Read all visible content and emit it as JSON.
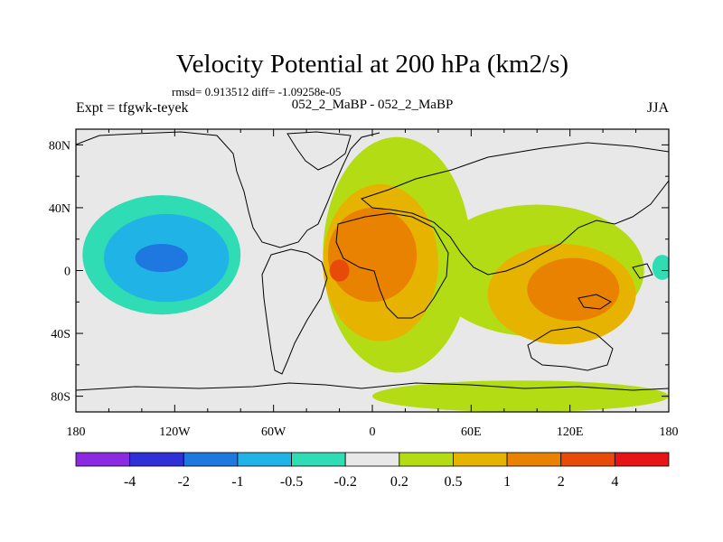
{
  "chart_data": {
    "type": "heatmap",
    "title": "Velocity Potential at 200 hPa (km2/s)",
    "stats_line": "rmsd= 0.913512 diff= -1.09258e-05",
    "left_label": "Expt = tfgwk-teyek",
    "center_label": "052_2_MaBP - 052_2_MaBP",
    "right_label": "JJA",
    "x_range": [
      -180,
      180
    ],
    "y_range": [
      -90,
      90
    ],
    "x_ticks": [
      {
        "value": -180,
        "label": "180"
      },
      {
        "value": -120,
        "label": "120W"
      },
      {
        "value": -60,
        "label": "60W"
      },
      {
        "value": 0,
        "label": "0"
      },
      {
        "value": 60,
        "label": "60E"
      },
      {
        "value": 120,
        "label": "120E"
      },
      {
        "value": 180,
        "label": "180"
      }
    ],
    "y_ticks": [
      {
        "value": 80,
        "label": "80N"
      },
      {
        "value": 40,
        "label": "40N"
      },
      {
        "value": 0,
        "label": "0"
      },
      {
        "value": -40,
        "label": "40S"
      },
      {
        "value": -80,
        "label": "80S"
      }
    ],
    "colorbar": {
      "colors": [
        "#8a2be2",
        "#3030d8",
        "#1e78e0",
        "#20b4e6",
        "#30dcb4",
        "#e8e8e8",
        "#b4dc14",
        "#e6b400",
        "#e88200",
        "#e84a0a",
        "#e61414"
      ],
      "labels": [
        "-4",
        "-2",
        "-1",
        "-0.5",
        "-0.2",
        "0.2",
        "0.5",
        "1",
        "2",
        "4"
      ]
    },
    "regions": [
      {
        "name": "pacific-negative",
        "level": -0.2,
        "center": [
          -130,
          25
        ],
        "radius": [
          58,
          60
        ]
      },
      {
        "name": "pacific-south-band",
        "level": -0.2,
        "center": [
          -150,
          -30
        ],
        "radius": [
          40,
          22
        ]
      },
      {
        "name": "pacific-negative-mid",
        "level": -0.5,
        "center": [
          -128,
          10
        ],
        "radius": [
          48,
          38
        ]
      },
      {
        "name": "pacific-negative-strong",
        "level": -1,
        "center": [
          -125,
          8
        ],
        "radius": [
          38,
          28
        ]
      },
      {
        "name": "pacific-negative-core",
        "level": -2,
        "center": [
          -128,
          8
        ],
        "radius": [
          16,
          9
        ]
      },
      {
        "name": "east-pacific-negative",
        "level": -0.2,
        "center": [
          172,
          2
        ],
        "radius": [
          12,
          18
        ]
      },
      {
        "name": "east-pacific-negative-core",
        "level": -0.5,
        "center": [
          176,
          2
        ],
        "radius": [
          6,
          8
        ]
      },
      {
        "name": "atlantic-africa-positive",
        "level": 0.2,
        "center": [
          15,
          10
        ],
        "radius": [
          45,
          75
        ]
      },
      {
        "name": "indian-ocean-positive",
        "level": 0.2,
        "center": [
          100,
          0
        ],
        "radius": [
          65,
          42
        ]
      },
      {
        "name": "southern-ocean-positive",
        "level": 0.2,
        "center": [
          90,
          -80
        ],
        "radius": [
          90,
          10
        ]
      },
      {
        "name": "atlantic-positive-mid",
        "level": 0.5,
        "center": [
          5,
          5
        ],
        "radius": [
          35,
          50
        ]
      },
      {
        "name": "asia-positive-mid",
        "level": 0.5,
        "center": [
          115,
          -15
        ],
        "radius": [
          45,
          32
        ]
      },
      {
        "name": "africa-positive-strong",
        "level": 1,
        "center": [
          0,
          10
        ],
        "radius": [
          27,
          30
        ]
      },
      {
        "name": "indian-positive-strong",
        "level": 1,
        "center": [
          122,
          -12
        ],
        "radius": [
          28,
          20
        ]
      },
      {
        "name": "africa-positive-core",
        "level": 2,
        "center": [
          -20,
          0
        ],
        "radius": [
          6,
          7
        ]
      }
    ]
  }
}
